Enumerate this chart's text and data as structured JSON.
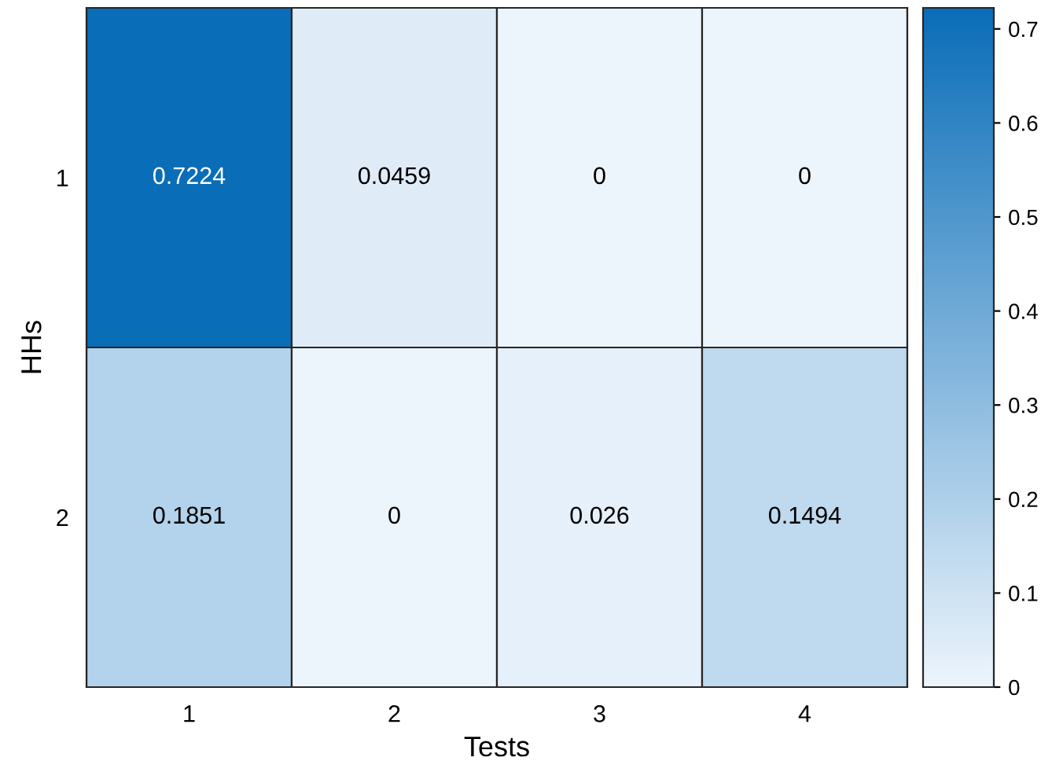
{
  "chart_data": {
    "type": "heatmap",
    "xlabel": "Tests",
    "ylabel": "HHs",
    "categories": [
      "1",
      "2",
      "3",
      "4"
    ],
    "y_categories": [
      "1",
      "2"
    ],
    "cells": [
      [
        0.7224,
        0.0459,
        0,
        0
      ],
      [
        0.1851,
        0,
        0.026,
        0.1494
      ]
    ],
    "clim": [
      0,
      0.7224
    ],
    "cticks": [
      0,
      0.1,
      0.2,
      0.3,
      0.4,
      0.5,
      0.6,
      0.7
    ],
    "data_labels": true
  }
}
